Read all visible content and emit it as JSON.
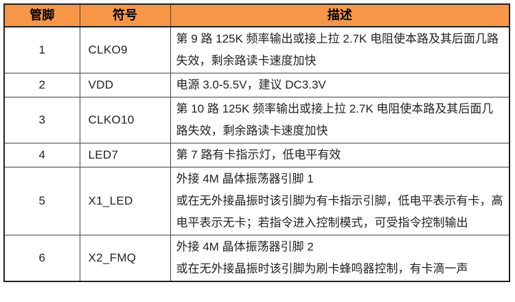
{
  "table": {
    "columns": [
      {
        "key": "pin",
        "label": "管脚"
      },
      {
        "key": "symbol",
        "label": "符号"
      },
      {
        "key": "desc",
        "label": "描述"
      }
    ],
    "rows": [
      {
        "pin": "1",
        "symbol": "CLKO9",
        "desc": [
          "第 9 路 125K 频率输出或接上拉 2.7K 电阻使本路及其后面几路失效，剩余路读卡速度加快"
        ]
      },
      {
        "pin": "2",
        "symbol": "VDD",
        "desc": [
          "电源 3.0-5.5V，建议 DC3.3V"
        ]
      },
      {
        "pin": "3",
        "symbol": "CLKO10",
        "desc": [
          "第 10 路 125K 频率输出或接上拉 2.7K 电阻使本路及其后面几路失效，剩余路读卡速度加快"
        ]
      },
      {
        "pin": "4",
        "symbol": "LED7",
        "desc": [
          "第 7 路有卡指示灯，低电平有效"
        ]
      },
      {
        "pin": "5",
        "symbol": "X1_LED",
        "desc": [
          "外接 4M 晶体振荡器引脚 1",
          "或在无外接晶振时该引脚为有卡指示引脚，低电平表示有卡，高电平表示无卡；若指令进入控制模式，可受指令控制输出"
        ]
      },
      {
        "pin": "6",
        "symbol": "X2_FMQ",
        "desc": [
          "外接 4M 晶体振荡器引脚 2",
          "或在无外接晶振时该引脚为刷卡蜂鸣器控制，有卡滴一声"
        ]
      }
    ]
  },
  "colors": {
    "header_bg": "#F79646",
    "header_text": "#000000",
    "body_text": "#222222",
    "border_inner": "#404040",
    "border_outer": "#1f1f1f"
  }
}
